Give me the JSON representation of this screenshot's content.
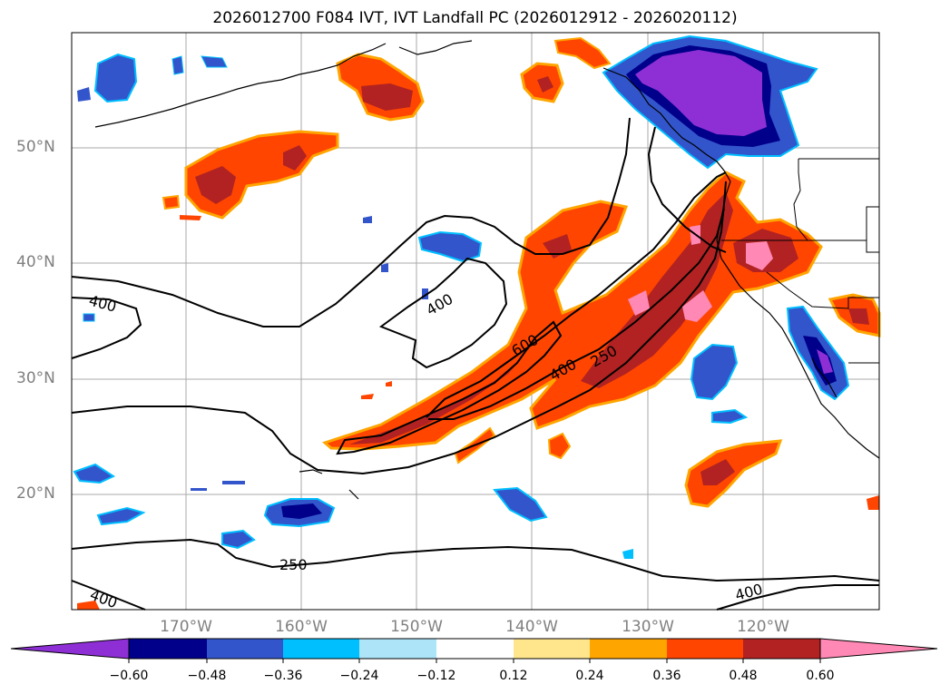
{
  "title": "2026012700 F084 IVT, IVT Landfall PC (2026012912 - 2026020112)",
  "map": {
    "lat_labels": [
      "50°N",
      "40°N",
      "30°N",
      "20°N"
    ],
    "lon_labels": [
      "170°W",
      "160°W",
      "150°W",
      "140°W",
      "130°W",
      "120°W"
    ],
    "contour_labels": [
      "400",
      "400",
      "600",
      "400",
      "250",
      "250",
      "400",
      "400"
    ]
  },
  "colorbar": {
    "ticks": [
      "−0.60",
      "−0.48",
      "−0.36",
      "−0.24",
      "−0.12",
      "0.12",
      "0.24",
      "0.36",
      "0.48",
      "0.60"
    ],
    "colors": [
      "#8e2fd6",
      "#00008b",
      "#3355cc",
      "#00bfff",
      "#ade4f8",
      "#ffffff",
      "#ffe68c",
      "#ffa500",
      "#ff4500",
      "#b22222",
      "#ff88b4",
      "#ff88b4"
    ]
  },
  "colors": {
    "positive_high": "#b22222",
    "positive_mid": "#ff4500",
    "positive_low": "#ffa500",
    "negative_high": "#8e2fd6",
    "negative_mid": "#3355cc",
    "gridline": "#aaaaaa"
  }
}
